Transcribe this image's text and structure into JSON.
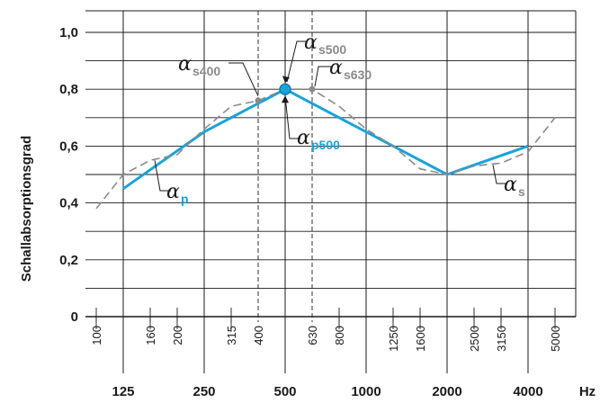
{
  "chart_data": {
    "type": "line",
    "ylabel": "Schallabsorptionsgrad",
    "x_unit": "Hz",
    "ylim": [
      0,
      1.0
    ],
    "yticks": [
      "0",
      "0,2",
      "0,4",
      "0,6",
      "0,8",
      "1,0"
    ],
    "xticks_third_octave": [
      "100",
      "160",
      "200",
      "315",
      "400",
      "630",
      "800",
      "1250",
      "1600",
      "2500",
      "3150",
      "5000"
    ],
    "xticks_octave": [
      "125",
      "250",
      "500",
      "1000",
      "2000",
      "4000"
    ],
    "series": [
      {
        "key": "alpha_p",
        "color": "#1aa3d9",
        "style": "solid",
        "x": [
          "125",
          "250",
          "500",
          "1000",
          "2000",
          "4000"
        ],
        "y": [
          0.45,
          0.65,
          0.8,
          0.65,
          0.5,
          0.6
        ]
      },
      {
        "key": "alpha_s",
        "color": "#8a8a8a",
        "style": "dashed",
        "x": [
          "100",
          "125",
          "160",
          "200",
          "250",
          "315",
          "400",
          "500",
          "630",
          "800",
          "1000",
          "1250",
          "1600",
          "2000",
          "2500",
          "3150",
          "4000",
          "5000"
        ],
        "y": [
          0.38,
          0.5,
          0.55,
          0.57,
          0.66,
          0.74,
          0.76,
          0.8,
          0.8,
          0.74,
          0.66,
          0.6,
          0.52,
          0.5,
          0.53,
          0.54,
          0.58,
          0.7
        ]
      }
    ],
    "markers": [
      {
        "key": "s400",
        "x": "400",
        "y": 0.76,
        "color": "#8a8a8a"
      },
      {
        "key": "p500",
        "x": "500",
        "y": 0.8,
        "color": "#1aa3d9"
      },
      {
        "key": "s630",
        "x": "630",
        "y": 0.8,
        "color": "#8a8a8a"
      }
    ],
    "annotations": {
      "alpha_symbol": "α",
      "s400_sub": "s400",
      "s500_sub": "s500",
      "s630_sub": "s630",
      "p500_sub": "p500",
      "p_sub": "p",
      "s_sub": "s"
    },
    "grid": true
  }
}
